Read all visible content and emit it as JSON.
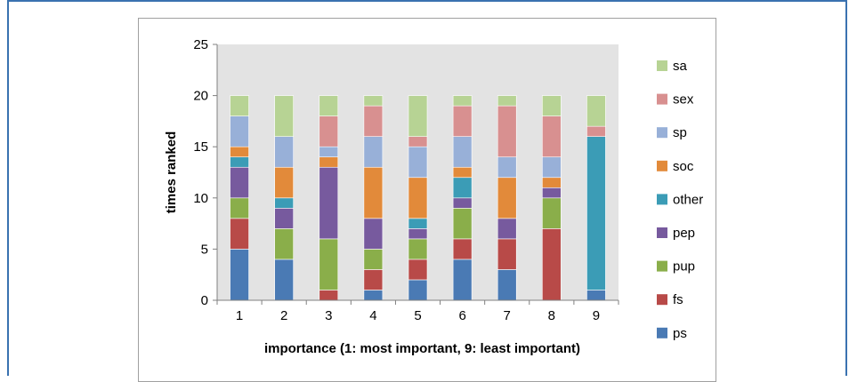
{
  "chart_data": {
    "type": "bar",
    "stacked": true,
    "categories": [
      "1",
      "2",
      "3",
      "4",
      "5",
      "6",
      "7",
      "8",
      "9"
    ],
    "xlabel": "importance (1: most important, 9: least important)",
    "ylabel": "times ranked",
    "ylim": [
      0,
      25
    ],
    "yticks": [
      "0",
      "5",
      "10",
      "15",
      "20",
      "25"
    ],
    "grid": false,
    "plot_background": "#e3e3e3",
    "legend_position": "right",
    "series": [
      {
        "name": "ps",
        "color": "#4a7ab4",
        "values": [
          5,
          4,
          0,
          1,
          2,
          4,
          3,
          0,
          1
        ]
      },
      {
        "name": "fs",
        "color": "#b84a48",
        "values": [
          3,
          0,
          1,
          2,
          2,
          2,
          3,
          7,
          0
        ]
      },
      {
        "name": "pup",
        "color": "#8aae4a",
        "values": [
          2,
          3,
          5,
          2,
          2,
          3,
          0,
          3,
          0
        ]
      },
      {
        "name": "pep",
        "color": "#775a9e",
        "values": [
          3,
          2,
          7,
          3,
          1,
          1,
          2,
          1,
          0
        ]
      },
      {
        "name": "other",
        "color": "#3b9cb6",
        "values": [
          1,
          1,
          0,
          0,
          1,
          2,
          0,
          0,
          15
        ]
      },
      {
        "name": "soc",
        "color": "#e28a3a",
        "values": [
          1,
          3,
          1,
          5,
          4,
          1,
          4,
          1,
          0
        ]
      },
      {
        "name": "sp",
        "color": "#98b0d8",
        "values": [
          3,
          3,
          1,
          3,
          3,
          3,
          2,
          2,
          0
        ]
      },
      {
        "name": "sex",
        "color": "#d89090",
        "values": [
          0,
          0,
          3,
          3,
          1,
          3,
          5,
          4,
          1
        ]
      },
      {
        "name": "sa",
        "color": "#b7d394",
        "values": [
          2,
          4,
          2,
          1,
          4,
          1,
          1,
          2,
          3
        ]
      }
    ]
  }
}
